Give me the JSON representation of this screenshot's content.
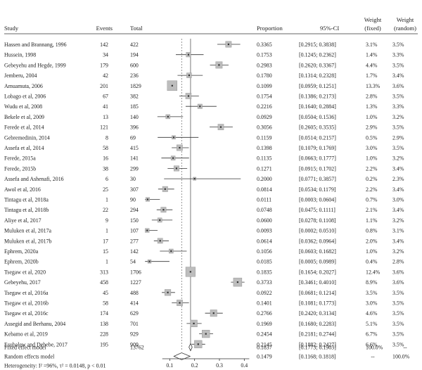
{
  "chart_data": {
    "type": "forest",
    "columns": {
      "study": "Study",
      "events": "Events",
      "total": "Total",
      "proportion": "Proportion",
      "ci": "95%-CI",
      "weight_fixed": "Weight\n(fixed)",
      "weight_random": "Weight\n(random)"
    },
    "xlim": [
      0,
      0.45
    ],
    "xticks": [
      "0.1",
      "0.2",
      "0.3",
      "0.4"
    ],
    "studies": [
      {
        "name": "Hassen and Brannang, 1996",
        "events": "142",
        "total": "422",
        "prop": "0.3365",
        "ci": "[0.2915; 0.3838]",
        "lo": 0.2915,
        "hi": 0.3838,
        "wf": "3.1%",
        "wr": "3.5%"
      },
      {
        "name": "Hussein, 1998",
        "events": "34",
        "total": "194",
        "prop": "0.1753",
        "ci": "[0.1245; 0.2362]",
        "lo": 0.1245,
        "hi": 0.2362,
        "wf": "1.4%",
        "wr": "3.3%"
      },
      {
        "name": "Gebeyehu and Hegde, 1999",
        "events": "179",
        "total": "600",
        "prop": "0.2983",
        "ci": "[0.2620; 0.3367]",
        "lo": 0.262,
        "hi": 0.3367,
        "wf": "4.4%",
        "wr": "3.5%"
      },
      {
        "name": "Jemberu, 2004",
        "events": "42",
        "total": "236",
        "prop": "0.1780",
        "ci": "[0.1314; 0.2328]",
        "lo": 0.1314,
        "hi": 0.2328,
        "wf": "1.7%",
        "wr": "3.4%"
      },
      {
        "name": "Amuamuta, 2006",
        "events": "201",
        "total": "1829",
        "prop": "0.1099",
        "ci": "[0.0959; 0.1251]",
        "lo": 0.0959,
        "hi": 0.1251,
        "wf": "13.3%",
        "wr": "3.6%"
      },
      {
        "name": "Lobago et al, 2006",
        "events": "67",
        "total": "382",
        "prop": "0.1754",
        "ci": "[0.1386; 0.2173]",
        "lo": 0.1386,
        "hi": 0.2173,
        "wf": "2.8%",
        "wr": "3.5%"
      },
      {
        "name": "Wudu et al, 2008",
        "events": "41",
        "total": "185",
        "prop": "0.2216",
        "ci": "[0.1640; 0.2884]",
        "lo": 0.164,
        "hi": 0.2884,
        "wf": "1.3%",
        "wr": "3.3%"
      },
      {
        "name": "Bekele et al, 2009",
        "events": "13",
        "total": "140",
        "prop": "0.0929",
        "ci": "[0.0504; 0.1536]",
        "lo": 0.0504,
        "hi": 0.1536,
        "wf": "1.0%",
        "wr": "3.2%"
      },
      {
        "name": "Ferede et al, 2014",
        "events": "121",
        "total": "396",
        "prop": "0.3056",
        "ci": "[0.2605; 0.3535]",
        "lo": 0.2605,
        "hi": 0.3535,
        "wf": "2.9%",
        "wr": "3.5%"
      },
      {
        "name": "Gebremedinin, 2014",
        "events": "8",
        "total": "69",
        "prop": "0.1159",
        "ci": "[0.0514; 0.2157]",
        "lo": 0.0514,
        "hi": 0.2157,
        "wf": "0.5%",
        "wr": "2.9%"
      },
      {
        "name": "Assefa et al, 2014",
        "events": "58",
        "total": "415",
        "prop": "0.1398",
        "ci": "[0.1079; 0.1769]",
        "lo": 0.1079,
        "hi": 0.1769,
        "wf": "3.0%",
        "wr": "3.5%"
      },
      {
        "name": "Ferede, 2015a",
        "events": "16",
        "total": "141",
        "prop": "0.1135",
        "ci": "[0.0663; 0.1777]",
        "lo": 0.0663,
        "hi": 0.1777,
        "wf": "1.0%",
        "wr": "3.2%"
      },
      {
        "name": "Ferede, 2015b",
        "events": "38",
        "total": "299",
        "prop": "0.1271",
        "ci": "[0.0915; 0.1702]",
        "lo": 0.0915,
        "hi": 0.1702,
        "wf": "2.2%",
        "wr": "3.4%"
      },
      {
        "name": "Assefa and Ashenafi, 2016",
        "events": "6",
        "total": "30",
        "prop": "0.2000",
        "ci": "[0.0771; 0.3857]",
        "lo": 0.0771,
        "hi": 0.3857,
        "wf": "0.2%",
        "wr": "2.3%"
      },
      {
        "name": "Awol et al, 2016",
        "events": "25",
        "total": "307",
        "prop": "0.0814",
        "ci": "[0.0534; 0.1179]",
        "lo": 0.0534,
        "hi": 0.1179,
        "wf": "2.2%",
        "wr": "3.4%"
      },
      {
        "name": "Tintagu et al, 2018a",
        "events": "1",
        "total": "90",
        "prop": "0.0111",
        "ci": "[0.0003; 0.0604]",
        "lo": 0.0003,
        "hi": 0.0604,
        "wf": "0.7%",
        "wr": "3.0%"
      },
      {
        "name": "Tintagu et al, 2018b",
        "events": "22",
        "total": "294",
        "prop": "0.0748",
        "ci": "[0.0475; 0.1111]",
        "lo": 0.0475,
        "hi": 0.1111,
        "wf": "2.1%",
        "wr": "3.4%"
      },
      {
        "name": "Aliye et al, 2017",
        "events": "9",
        "total": "150",
        "prop": "0.0600",
        "ci": "[0.0278; 0.1108]",
        "lo": 0.0278,
        "hi": 0.1108,
        "wf": "1.1%",
        "wr": "3.2%"
      },
      {
        "name": "Muluken et al, 2017a",
        "events": "1",
        "total": "107",
        "prop": "0.0093",
        "ci": "[0.0002; 0.0510]",
        "lo": 0.0002,
        "hi": 0.051,
        "wf": "0.8%",
        "wr": "3.1%"
      },
      {
        "name": "Muluken et al, 2017b",
        "events": "17",
        "total": "277",
        "prop": "0.0614",
        "ci": "[0.0362; 0.0964]",
        "lo": 0.0362,
        "hi": 0.0964,
        "wf": "2.0%",
        "wr": "3.4%"
      },
      {
        "name": "Ephrem, 2020a",
        "events": "15",
        "total": "142",
        "prop": "0.1056",
        "ci": "[0.0603; 0.1682]",
        "lo": 0.0603,
        "hi": 0.1682,
        "wf": "1.0%",
        "wr": "3.2%"
      },
      {
        "name": "Ephrem, 2020b",
        "events": "1",
        "total": "54",
        "prop": "0.0185",
        "ci": "[0.0005; 0.0989]",
        "lo": 0.0005,
        "hi": 0.0989,
        "wf": "0.4%",
        "wr": "2.8%"
      },
      {
        "name": "Tsegaw et al, 2020",
        "events": "313",
        "total": "1706",
        "prop": "0.1835",
        "ci": "[0.1654; 0.2027]",
        "lo": 0.1654,
        "hi": 0.2027,
        "wf": "12.4%",
        "wr": "3.6%"
      },
      {
        "name": "Gebeyehu, 2017",
        "events": "458",
        "total": "1227",
        "prop": "0.3733",
        "ci": "[0.3461; 0.4010]",
        "lo": 0.3461,
        "hi": 0.401,
        "wf": "8.9%",
        "wr": "3.6%"
      },
      {
        "name": "Tsegaw et al, 2016a",
        "events": "45",
        "total": "488",
        "prop": "0.0922",
        "ci": "[0.0681; 0.1214]",
        "lo": 0.0681,
        "hi": 0.1214,
        "wf": "3.5%",
        "wr": "3.5%"
      },
      {
        "name": "Tsegaw et al, 2016b",
        "events": "58",
        "total": "414",
        "prop": "0.1401",
        "ci": "[0.1081; 0.1773]",
        "lo": 0.1081,
        "hi": 0.1773,
        "wf": "3.0%",
        "wr": "3.5%"
      },
      {
        "name": "Tsegaw et al, 2016c",
        "events": "174",
        "total": "629",
        "prop": "0.2766",
        "ci": "[0.2420; 0.3134]",
        "lo": 0.242,
        "hi": 0.3134,
        "wf": "4.6%",
        "wr": "3.5%"
      },
      {
        "name": "Assegid and Berhanu, 2004",
        "events": "138",
        "total": "701",
        "prop": "0.1969",
        "ci": "[0.1680; 0.2283]",
        "lo": 0.168,
        "hi": 0.2283,
        "wf": "5.1%",
        "wr": "3.5%"
      },
      {
        "name": "Kebamo et al, 2019",
        "events": "228",
        "total": "929",
        "prop": "0.2454",
        "ci": "[0.2181; 0.2744]",
        "lo": 0.2181,
        "hi": 0.2744,
        "wf": "6.7%",
        "wr": "3.5%"
      },
      {
        "name": "Esubalew and Debebe, 2017",
        "events": "195",
        "total": "909",
        "prop": "0.2145",
        "ci": "[0.1882; 0.2427]",
        "lo": 0.1882,
        "hi": 0.2427,
        "wf": "6.6%",
        "wr": "3.5%"
      }
    ],
    "fixed": {
      "name": "Fixed effect model",
      "total": "13762",
      "prop": "0.1837",
      "ci": "[0.1773; 0.1903]",
      "lo": 0.1773,
      "hi": 0.1903,
      "wf": "100.0%",
      "wr": "--"
    },
    "random": {
      "name": "Random effects model",
      "prop": "0.1479",
      "ci": "[0.1168; 0.1818]",
      "lo": 0.1168,
      "hi": 0.1818,
      "wf": "--",
      "wr": "100.0%"
    },
    "heterogeneity": "Heterogeneity: I² =96%, τ² = 0.0148, p < 0.01"
  }
}
